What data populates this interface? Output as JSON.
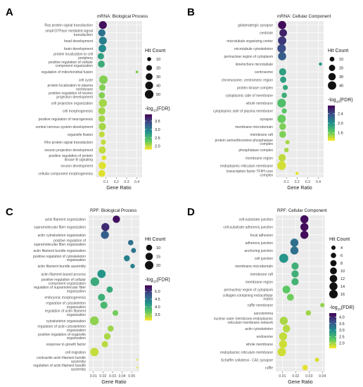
{
  "figure": {
    "panels": [
      {
        "letter": "A",
        "title": "mRNA: Biological Process",
        "xlabel": "Gene Ratio",
        "legend_size_title": "Hit Count",
        "legend_color_title_main": "-log",
        "legend_color_title_sub": "10",
        "legend_color_title_tail": "(FDR)"
      },
      {
        "letter": "B",
        "title": "mRNA: Cellular Component",
        "xlabel": "Gene Ratio",
        "legend_size_title": "Hit Count",
        "legend_color_title_main": "-log",
        "legend_color_title_sub": "10",
        "legend_color_title_tail": "(FDR)"
      },
      {
        "letter": "C",
        "title": "RPF: Biological Process",
        "xlabel": "Gene Ratio",
        "legend_size_title": "Hit Count",
        "legend_color_title_main": "-log",
        "legend_color_title_sub": "10",
        "legend_color_title_tail": "(FDR)"
      },
      {
        "letter": "D",
        "title": "RPF: Cellular Component",
        "xlabel": "Gene Ratio",
        "legend_size_title": "Hit Count",
        "legend_color_title_main": "-log",
        "legend_color_title_sub": "10",
        "legend_color_title_tail": "(FDR)"
      }
    ],
    "colors": {
      "panel_bg": "#ebebeb",
      "grid": "#ffffff",
      "gradient": [
        "#440154",
        "#3b528b",
        "#21908d",
        "#5dc963",
        "#fde725"
      ],
      "text": "#1a1a1a",
      "axis_text": "#4d4d4d"
    }
  },
  "chart_data": [
    {
      "type": "scatter",
      "title": "mRNA: Biological Process",
      "xlabel": "Gene Ratio",
      "ylabel": "",
      "xlim": [
        0.0,
        0.45
      ],
      "xticks": [
        0.1,
        0.2,
        0.3,
        0.4
      ],
      "size_legend": [
        10,
        20,
        30,
        40,
        50
      ],
      "size_domain": [
        5,
        55
      ],
      "color_domain": [
        1.8,
        3.9
      ],
      "color_ticks": [
        2.0,
        2.5,
        3.0,
        3.5
      ],
      "points": [
        {
          "label": "Ras protein signal transduction",
          "x": 0.07,
          "count": 40,
          "color": 3.8
        },
        {
          "label": "small GTPase mediated signal transduction",
          "x": 0.06,
          "count": 34,
          "color": 3.1
        },
        {
          "label": "head development",
          "x": 0.07,
          "count": 40,
          "color": 3.0
        },
        {
          "label": "brain development",
          "x": 0.065,
          "count": 37,
          "color": 2.9
        },
        {
          "label": "protein localization to cell periphery",
          "x": 0.05,
          "count": 26,
          "color": 2.7
        },
        {
          "label": "positive regulation of cellular component organization",
          "x": 0.055,
          "count": 30,
          "color": 2.6
        },
        {
          "label": "regulation of mitochondrial fusion",
          "x": 0.4,
          "count": 6,
          "color": 2.2
        },
        {
          "label": "cell cycle",
          "x": 0.075,
          "count": 48,
          "color": 2.2
        },
        {
          "label": "protein localization to plasma membrane",
          "x": 0.065,
          "count": 26,
          "color": 2.2
        },
        {
          "label": "positive regulation of neuron projection development",
          "x": 0.06,
          "count": 24,
          "color": 2.2
        },
        {
          "label": "cell projection organization",
          "x": 0.07,
          "count": 42,
          "color": 2.1
        },
        {
          "label": "cell morphogenesis",
          "x": 0.06,
          "count": 34,
          "color": 2.1
        },
        {
          "label": "positive regulation of neurogenesis",
          "x": 0.06,
          "count": 28,
          "color": 2.1
        },
        {
          "label": "central nervous system development",
          "x": 0.065,
          "count": 34,
          "color": 2.1
        },
        {
          "label": "organelle fission",
          "x": 0.06,
          "count": 20,
          "color": 2.0
        },
        {
          "label": "Rho protein signal transduction",
          "x": 0.075,
          "count": 16,
          "color": 2.0
        },
        {
          "label": "neuron projection development",
          "x": 0.065,
          "count": 32,
          "color": 2.0
        },
        {
          "label": "positive regulation of protein kinase B signaling",
          "x": 0.08,
          "count": 14,
          "color": 1.9
        },
        {
          "label": "neuron development",
          "x": 0.065,
          "count": 35,
          "color": 1.9
        },
        {
          "label": "cellular component morphogenesis",
          "x": 0.06,
          "count": 30,
          "color": 1.9
        }
      ]
    },
    {
      "type": "scatter",
      "title": "mRNA: Cellular Component",
      "xlabel": "Gene Ratio",
      "ylabel": "",
      "xlim": [
        0.0,
        0.45
      ],
      "xticks": [
        0.1,
        0.2,
        0.3,
        0.4
      ],
      "size_legend": [
        10,
        20,
        30,
        40
      ],
      "size_domain": [
        2,
        48
      ],
      "color_domain": [
        1.25,
        2.75
      ],
      "color_ticks": [
        1.6,
        2.0,
        2.4
      ],
      "points": [
        {
          "label": "glutamatergic synapse",
          "x": 0.06,
          "count": 38,
          "color": 2.7
        },
        {
          "label": "centriole",
          "x": 0.07,
          "count": 32,
          "color": 2.6
        },
        {
          "label": "microtubule organizing center",
          "x": 0.06,
          "count": 40,
          "color": 2.5
        },
        {
          "label": "microtubule cytoskeleton",
          "x": 0.055,
          "count": 42,
          "color": 2.4
        },
        {
          "label": "perinuclear region of cytoplasm",
          "x": 0.06,
          "count": 38,
          "color": 2.3
        },
        {
          "label": "kinetochore microtubule",
          "x": 0.42,
          "count": 4,
          "color": 1.95
        },
        {
          "label": "centrosome",
          "x": 0.065,
          "count": 28,
          "color": 1.9
        },
        {
          "label": "chromosome, centromeric region",
          "x": 0.07,
          "count": 20,
          "color": 1.9
        },
        {
          "label": "protein kinase complex",
          "x": 0.09,
          "count": 12,
          "color": 1.85
        },
        {
          "label": "cytoplasmic side of membrane",
          "x": 0.08,
          "count": 14,
          "color": 1.8
        },
        {
          "label": "whole membrane",
          "x": 0.055,
          "count": 44,
          "color": 1.7
        },
        {
          "label": "cytoplasmic side of plasma membrane",
          "x": 0.08,
          "count": 12,
          "color": 1.65
        },
        {
          "label": "synapse",
          "x": 0.055,
          "count": 40,
          "color": 1.6
        },
        {
          "label": "membrane microdomain",
          "x": 0.065,
          "count": 24,
          "color": 1.55
        },
        {
          "label": "membrane raft",
          "x": 0.065,
          "count": 24,
          "color": 1.55
        },
        {
          "label": "protein serine/threonine phosphatase complex",
          "x": 0.11,
          "count": 8,
          "color": 1.45
        },
        {
          "label": "phosphatase complex",
          "x": 0.1,
          "count": 9,
          "color": 1.45
        },
        {
          "label": "membrane region",
          "x": 0.06,
          "count": 30,
          "color": 1.4
        },
        {
          "label": "endoplasmic reticulum membrane",
          "x": 0.055,
          "count": 44,
          "color": 1.35
        },
        {
          "label": "transcription factor TFIIH core complex",
          "x": 0.2,
          "count": 4,
          "color": 1.3
        }
      ]
    },
    {
      "type": "scatter",
      "title": "RPF: Biological Process",
      "xlabel": "Gene Ratio",
      "ylabel": "",
      "xlim": [
        0.005,
        0.058
      ],
      "xticks": [
        0.01,
        0.02,
        0.03,
        0.04,
        0.05
      ],
      "size_legend": [
        10,
        15,
        20
      ],
      "size_domain": [
        3,
        23
      ],
      "color_domain": [
        3.1,
        5.4
      ],
      "color_ticks": [
        3.5,
        4.0,
        4.5,
        5.0
      ],
      "points": [
        {
          "label": "actin filament organization",
          "x": 0.034,
          "count": 15,
          "color": 5.3
        },
        {
          "label": "supramolecular fiber organization",
          "x": 0.0225,
          "count": 18,
          "color": 5.1
        },
        {
          "label": "actin cytoskeleton organization",
          "x": 0.022,
          "count": 18,
          "color": 4.7
        },
        {
          "label": "positive regulation of supramolecular fiber organization",
          "x": 0.049,
          "count": 8,
          "color": 4.55
        },
        {
          "label": "actin filament bundle organization",
          "x": 0.052,
          "count": 7,
          "color": 4.5
        },
        {
          "label": "positive regulation of cytoskeleton organization",
          "x": 0.045,
          "count": 10,
          "color": 4.4
        },
        {
          "label": "actin filament bundle assembly",
          "x": 0.051,
          "count": 6,
          "color": 4.4
        },
        {
          "label": "actin filament-based process",
          "x": 0.0185,
          "count": 19,
          "color": 4.2
        },
        {
          "label": "positive regulation of cellular component organization",
          "x": 0.0115,
          "count": 21,
          "color": 4.0
        },
        {
          "label": "regulation of supramolecular fiber organization",
          "x": 0.027,
          "count": 11,
          "color": 4.0
        },
        {
          "label": "embryonic morphogenesis",
          "x": 0.0185,
          "count": 14,
          "color": 3.95
        },
        {
          "label": "regulation of cytoskeleton organization",
          "x": 0.021,
          "count": 14,
          "color": 3.85
        },
        {
          "label": "regulation of actin filament organization",
          "x": 0.033,
          "count": 9,
          "color": 3.6
        },
        {
          "label": "cytoskeleton organization",
          "x": 0.011,
          "count": 22,
          "color": 3.5
        },
        {
          "label": "regulation of actin cytoskeleton organization",
          "x": 0.028,
          "count": 10,
          "color": 3.45
        },
        {
          "label": "positive regulation of organelle organization",
          "x": 0.0245,
          "count": 12,
          "color": 3.4
        },
        {
          "label": "response to growth factor",
          "x": 0.022,
          "count": 11,
          "color": 3.35
        },
        {
          "label": "cell migration",
          "x": 0.011,
          "count": 20,
          "color": 3.3
        },
        {
          "label": "contractile actin filament bundle assembly",
          "x": 0.056,
          "count": 3,
          "color": 3.2
        },
        {
          "label": "regulation of actin filament bundle assembly",
          "x": 0.056,
          "count": 3,
          "color": 3.2
        }
      ]
    },
    {
      "type": "scatter",
      "title": "RPF: Cellular Component",
      "xlabel": "Gene Ratio",
      "ylabel": "",
      "xlim": [
        0.005,
        0.042
      ],
      "xticks": [
        0.01,
        0.02,
        0.03,
        0.04
      ],
      "size_legend": [
        4,
        6,
        8,
        10,
        12,
        14,
        16
      ],
      "size_domain": [
        2,
        18
      ],
      "color_domain": [
        1.6,
        4.3
      ],
      "color_ticks": [
        2.0,
        2.5,
        3.0,
        3.5,
        4.0
      ],
      "points": [
        {
          "label": "cell-substrate junction",
          "x": 0.0265,
          "count": 14,
          "color": 4.2
        },
        {
          "label": "cell-substrate adherens junction",
          "x": 0.0265,
          "count": 14,
          "color": 4.2
        },
        {
          "label": "focal adhesion",
          "x": 0.0265,
          "count": 14,
          "color": 4.2
        },
        {
          "label": "adherens junction",
          "x": 0.019,
          "count": 14,
          "color": 3.3
        },
        {
          "label": "anchoring junction",
          "x": 0.019,
          "count": 14,
          "color": 3.3
        },
        {
          "label": "cell junction",
          "x": 0.011,
          "count": 18,
          "color": 2.9
        },
        {
          "label": "membrane microdomain",
          "x": 0.0195,
          "count": 11,
          "color": 2.6
        },
        {
          "label": "membrane raft",
          "x": 0.0195,
          "count": 11,
          "color": 2.6
        },
        {
          "label": "membrane region",
          "x": 0.0195,
          "count": 11,
          "color": 2.55
        },
        {
          "label": "perinuclear region of cytoplasm",
          "x": 0.013,
          "count": 13,
          "color": 2.3
        },
        {
          "label": "collagen-containing extracellular matrix",
          "x": 0.016,
          "count": 10,
          "color": 2.2
        },
        {
          "label": "ruffle membrane",
          "x": 0.04,
          "count": 4,
          "color": 2.05
        },
        {
          "label": "sarcolemma",
          "x": 0.0295,
          "count": 6,
          "color": 2.0
        },
        {
          "label": "nuclear outer membrane-endoplasmic reticulum membrane network",
          "x": 0.011,
          "count": 14,
          "color": 1.95
        },
        {
          "label": "actin cytoskeleton",
          "x": 0.013,
          "count": 12,
          "color": 1.9
        },
        {
          "label": "endosome",
          "x": 0.0105,
          "count": 14,
          "color": 1.85
        },
        {
          "label": "whole membrane",
          "x": 0.0105,
          "count": 14,
          "color": 1.8
        },
        {
          "label": "endoplasmic reticulum membrane",
          "x": 0.0095,
          "count": 16,
          "color": 1.8
        },
        {
          "label": "Schaffer collateral - CA1 synapse",
          "x": 0.036,
          "count": 4,
          "color": 1.75
        },
        {
          "label": "ruffle",
          "x": 0.027,
          "count": 6,
          "color": 1.7
        }
      ]
    }
  ]
}
